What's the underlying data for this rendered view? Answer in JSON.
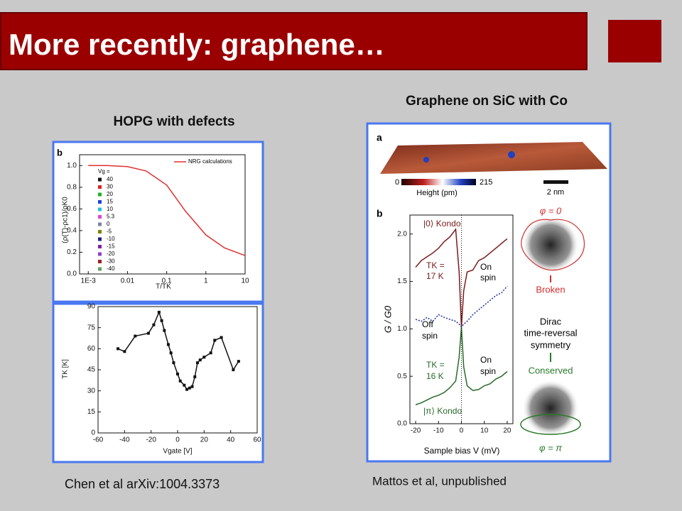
{
  "header": {
    "title": "More recently: graphene…"
  },
  "left": {
    "heading": "HOPG with defects",
    "caption": "Chen et al arXiv:1004.3373",
    "top_plot": {
      "type": "line",
      "panel": "b",
      "xscale": "log",
      "xlim": [
        0.0006,
        10
      ],
      "ylim": [
        0,
        1.1
      ],
      "xticks": [
        {
          "value": 0.001,
          "label": "1E-3"
        },
        0.01,
        0.1,
        1,
        10
      ],
      "yticks": [
        {
          "value": 0,
          "label": "0.0"
        },
        0.2,
        0.4,
        0.6,
        0.8,
        {
          "value": 1,
          "label": "1.0"
        }
      ],
      "xlabel": "T/TK",
      "ylabel": "(ρ(T)-ρc1)/ρK0",
      "series": [
        {
          "name": "NRG calculations",
          "color": "#e03030",
          "x": [
            0.001,
            0.003,
            0.01,
            0.03,
            0.1,
            0.3,
            1,
            3,
            10
          ],
          "values": [
            1,
            1,
            0.99,
            0.95,
            0.82,
            0.58,
            0.36,
            0.24,
            0.17
          ]
        }
      ],
      "legend_title": "Vg =",
      "legend": [
        {
          "label": "40",
          "color": "#111111"
        },
        {
          "label": "30",
          "color": "#e02020"
        },
        {
          "label": "20",
          "color": "#20b020"
        },
        {
          "label": "15",
          "color": "#2040e0"
        },
        {
          "label": "10",
          "color": "#20c0e0"
        },
        {
          "label": "5.3",
          "color": "#e040e0"
        },
        {
          "label": "0",
          "color": "#8080a0"
        },
        {
          "label": "-5",
          "color": "#808000"
        },
        {
          "label": "-10",
          "color": "#202080"
        },
        {
          "label": "-15",
          "color": "#8020a0"
        },
        {
          "label": "-20",
          "color": "#9040c0"
        },
        {
          "label": "-30",
          "color": "#a02020"
        },
        {
          "label": "-40",
          "color": "#60a060"
        }
      ]
    },
    "bottom_plot": {
      "type": "line",
      "color": "#111111",
      "xlim": [
        -60,
        60
      ],
      "ylim": [
        0,
        90
      ],
      "xticks": [
        -60,
        -40,
        -20,
        0,
        20,
        40,
        60
      ],
      "yticks": [
        0,
        15,
        30,
        45,
        60,
        75,
        90
      ],
      "xlabel": "Vgate [V]",
      "ylabel": "TK [K]",
      "x": [
        -45,
        -40,
        -32,
        -22,
        -18,
        -14,
        -12,
        -10,
        -7,
        -5,
        -3,
        0,
        2,
        5,
        7,
        9,
        11,
        13,
        15,
        17,
        20,
        25,
        28,
        33,
        42,
        46
      ],
      "values": [
        60,
        58,
        69,
        71,
        77,
        86,
        80,
        73,
        63,
        57,
        50,
        42,
        37,
        34,
        31,
        32,
        33,
        40,
        50,
        52,
        54,
        57,
        66,
        68,
        45,
        51
      ]
    }
  },
  "right": {
    "heading": "Graphene on SiC with Co",
    "caption": "Mattos et al, unpublished",
    "panel_a": {
      "label": "a",
      "scale_min": "0",
      "scale_max": "215",
      "scale_title": "Height (pm)",
      "bar": "2 nm"
    },
    "plot": {
      "type": "line",
      "panel": "b",
      "xlim": [
        -22.5,
        22.5
      ],
      "ylim": [
        0,
        2.2
      ],
      "xticks": [
        -20,
        -10,
        0,
        10,
        20
      ],
      "yticks": [
        {
          "value": 0,
          "label": "0.0"
        },
        0.5,
        {
          "value": 1,
          "label": "1.0"
        },
        1.5,
        {
          "value": 2,
          "label": "2.0"
        }
      ],
      "xlabel": "Sample bias V (mV)",
      "ylabel": "G / G0",
      "x": [
        -20,
        -17.5,
        -15,
        -12.5,
        -10,
        -7.5,
        -5,
        -2.5,
        -1,
        0,
        1,
        2.5,
        5,
        7.5,
        10,
        12.5,
        15,
        17.5,
        20
      ],
      "series": [
        {
          "color": "#7a1a1a",
          "values": [
            1.65,
            1.72,
            1.76,
            1.8,
            1.85,
            1.92,
            1.97,
            2.05,
            1.6,
            1.02,
            1.4,
            1.6,
            1.62,
            1.72,
            1.75,
            1.8,
            1.85,
            1.9,
            1.95
          ]
        },
        {
          "color": "#2030a0",
          "values": [
            1.1,
            1.08,
            1.12,
            1.08,
            1.15,
            1.12,
            1.1,
            1.08,
            1.05,
            1.02,
            1.05,
            1.08,
            1.15,
            1.2,
            1.25,
            1.3,
            1.35,
            1.38,
            1.45
          ]
        },
        {
          "color": "#2a6a2a",
          "values": [
            0.2,
            0.22,
            0.25,
            0.28,
            0.3,
            0.33,
            0.38,
            0.45,
            0.7,
            1.02,
            0.6,
            0.4,
            0.35,
            0.36,
            0.4,
            0.42,
            0.47,
            0.5,
            0.55
          ]
        }
      ],
      "annotations": {
        "state0": "|0⟩ Kondo",
        "tk17": [
          "TK =",
          "17 K"
        ],
        "on1": [
          "On",
          "spin"
        ],
        "off": [
          "Off",
          "spin"
        ],
        "tk16": [
          "TK =",
          "16 K"
        ],
        "on2": [
          "On",
          "spin"
        ],
        "statepi": "|π⟩ Kondo"
      }
    },
    "scheme": {
      "phi0": "φ = 0",
      "broken": "Broken",
      "dirac": [
        "Dirac",
        "time-reversal",
        "symmetry"
      ],
      "conserved": "Conserved",
      "phipi": "φ = π"
    }
  }
}
